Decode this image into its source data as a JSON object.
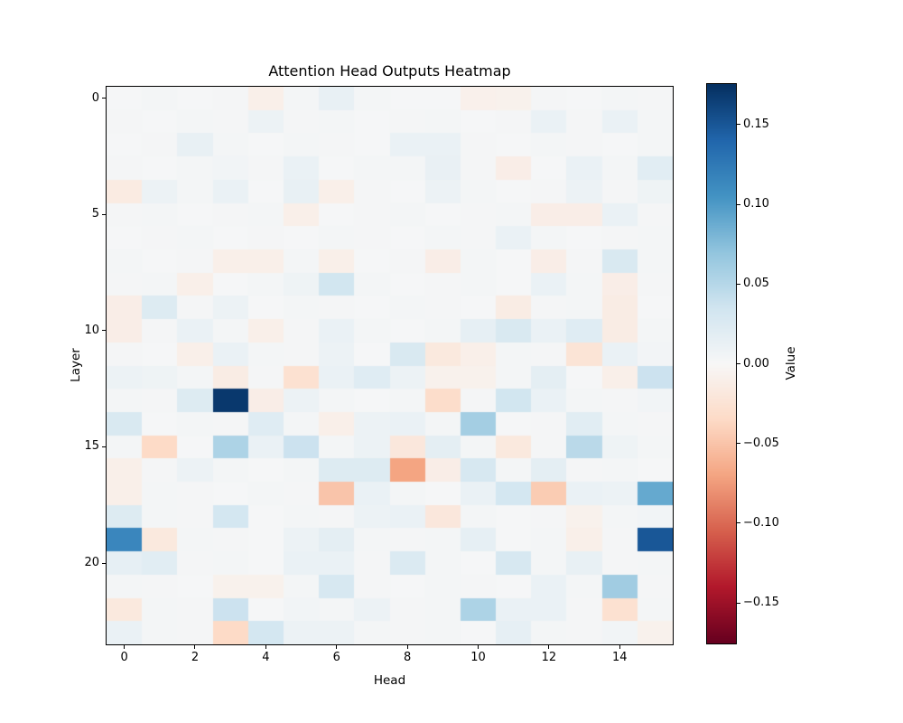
{
  "figure": {
    "background": "#ffffff"
  },
  "chart_data": {
    "type": "heatmap",
    "title": "Attention Head Outputs Heatmap",
    "xlabel": "Head",
    "ylabel": "Layer",
    "x_ticks": [
      0,
      2,
      4,
      6,
      8,
      10,
      12,
      14
    ],
    "y_ticks": [
      0,
      5,
      10,
      15,
      20
    ],
    "n_rows": 24,
    "n_cols": 16,
    "colormap": "RdBu",
    "vmin": -0.1754,
    "vmax": 0.1754,
    "grid": false,
    "values": [
      [
        0.002,
        0.004,
        0.002,
        0.003,
        -0.01,
        0.004,
        0.014,
        0.004,
        0.002,
        0.002,
        -0.009,
        -0.008,
        0.003,
        0.002,
        0.004,
        0.003
      ],
      [
        0.003,
        0.002,
        0.004,
        0.003,
        0.01,
        0.003,
        0.004,
        0.002,
        0.003,
        0.004,
        0.002,
        0.003,
        0.012,
        0.003,
        0.012,
        0.004
      ],
      [
        0.002,
        0.003,
        0.014,
        0.004,
        0.002,
        0.004,
        0.003,
        0.002,
        0.012,
        0.012,
        0.003,
        0.002,
        0.004,
        0.003,
        0.002,
        0.004
      ],
      [
        0.003,
        0.002,
        0.004,
        0.006,
        0.003,
        0.012,
        0.002,
        0.004,
        0.004,
        0.013,
        0.003,
        -0.012,
        0.002,
        0.012,
        0.004,
        0.02
      ],
      [
        -0.015,
        0.01,
        0.004,
        0.012,
        0.002,
        0.014,
        -0.01,
        0.003,
        0.002,
        0.01,
        0.004,
        0.002,
        0.003,
        0.01,
        0.003,
        0.008
      ],
      [
        0.003,
        0.004,
        0.002,
        0.003,
        0.004,
        -0.01,
        0.002,
        0.003,
        0.004,
        0.002,
        0.003,
        0.004,
        -0.012,
        -0.012,
        0.012,
        0.003
      ],
      [
        0.002,
        0.003,
        0.004,
        0.002,
        0.003,
        0.002,
        0.004,
        0.003,
        0.002,
        0.004,
        0.003,
        0.012,
        0.004,
        0.002,
        0.003,
        0.004
      ],
      [
        0.004,
        0.002,
        0.003,
        -0.01,
        -0.01,
        0.004,
        -0.01,
        0.002,
        0.003,
        -0.012,
        0.004,
        0.002,
        -0.012,
        0.003,
        0.028,
        0.004
      ],
      [
        0.003,
        0.004,
        -0.01,
        0.002,
        0.004,
        0.008,
        0.034,
        0.004,
        0.002,
        0.003,
        0.004,
        0.002,
        0.012,
        0.004,
        -0.012,
        0.003
      ],
      [
        -0.012,
        0.024,
        0.003,
        0.01,
        0.002,
        0.004,
        0.003,
        0.002,
        0.004,
        0.003,
        0.002,
        -0.014,
        0.003,
        0.004,
        -0.014,
        0.002
      ],
      [
        -0.012,
        0.003,
        0.012,
        0.004,
        -0.01,
        0.003,
        0.012,
        0.004,
        0.002,
        0.004,
        0.016,
        0.028,
        0.012,
        0.022,
        -0.014,
        0.004
      ],
      [
        0.003,
        0.002,
        -0.01,
        0.012,
        0.004,
        0.003,
        0.01,
        0.002,
        0.028,
        -0.018,
        -0.01,
        0.004,
        0.003,
        -0.024,
        0.012,
        0.005
      ],
      [
        0.01,
        0.008,
        0.004,
        -0.014,
        0.003,
        -0.028,
        0.012,
        0.022,
        0.01,
        -0.008,
        -0.008,
        0.004,
        0.018,
        0.002,
        -0.01,
        0.038
      ],
      [
        0.004,
        0.003,
        0.024,
        0.17,
        -0.012,
        0.01,
        0.004,
        0.002,
        0.004,
        -0.032,
        0.003,
        0.034,
        0.012,
        0.004,
        0.003,
        0.006
      ],
      [
        0.028,
        0.002,
        0.004,
        0.003,
        0.022,
        0.004,
        -0.01,
        0.01,
        0.012,
        0.004,
        0.06,
        0.002,
        0.003,
        0.02,
        0.004,
        0.003
      ],
      [
        0.004,
        -0.035,
        0.002,
        0.055,
        0.012,
        0.038,
        0.004,
        0.01,
        -0.02,
        0.018,
        0.004,
        -0.018,
        0.003,
        0.048,
        0.008,
        0.004
      ],
      [
        -0.01,
        0.003,
        0.01,
        0.004,
        0.002,
        0.004,
        0.024,
        0.024,
        -0.07,
        -0.012,
        0.03,
        0.004,
        0.018,
        0.003,
        0.004,
        0.002
      ],
      [
        -0.01,
        0.004,
        0.003,
        0.002,
        0.004,
        0.003,
        -0.05,
        0.012,
        0.004,
        0.002,
        0.012,
        0.032,
        -0.045,
        0.012,
        0.01,
        0.09
      ],
      [
        0.024,
        0.004,
        0.003,
        0.032,
        0.002,
        0.004,
        0.003,
        0.01,
        0.012,
        -0.02,
        0.004,
        0.002,
        0.003,
        -0.008,
        0.004,
        0.006
      ],
      [
        0.115,
        -0.018,
        0.004,
        0.003,
        0.002,
        0.01,
        0.018,
        0.004,
        0.003,
        0.004,
        0.016,
        0.002,
        0.004,
        -0.01,
        0.003,
        0.15
      ],
      [
        0.016,
        0.02,
        0.003,
        0.004,
        0.002,
        0.012,
        0.012,
        0.003,
        0.026,
        0.004,
        0.002,
        0.03,
        0.004,
        0.014,
        0.003,
        0.004
      ],
      [
        0.004,
        0.003,
        0.002,
        -0.008,
        -0.008,
        0.004,
        0.03,
        0.003,
        0.002,
        0.004,
        0.003,
        0.002,
        0.012,
        0.004,
        0.062,
        0.003
      ],
      [
        -0.018,
        0.004,
        0.003,
        0.038,
        0.002,
        0.006,
        0.004,
        0.01,
        0.003,
        0.004,
        0.055,
        0.012,
        0.012,
        0.003,
        -0.028,
        0.004
      ],
      [
        0.012,
        0.004,
        0.003,
        -0.035,
        0.032,
        0.01,
        0.01,
        0.004,
        0.003,
        0.004,
        0.002,
        0.016,
        0.004,
        0.003,
        0.006,
        -0.008
      ]
    ]
  },
  "colorbar": {
    "label": "Value",
    "ticks": [
      0.15,
      0.1,
      0.05,
      0.0,
      -0.05,
      -0.1,
      -0.15
    ],
    "tick_labels": [
      "0.15",
      "0.10",
      "0.05",
      "0.00",
      "−0.05",
      "−0.10",
      "−0.15"
    ],
    "color_max": "#053061",
    "color_mid": "#f7f7f7",
    "color_min": "#67001f"
  }
}
